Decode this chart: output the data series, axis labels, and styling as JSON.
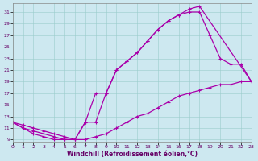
{
  "xlabel": "Windchill (Refroidissement éolien,°C)",
  "bg_color": "#cde8f0",
  "line_color": "#aa00aa",
  "marker": "+",
  "xlim": [
    0,
    23
  ],
  "ylim": [
    8.5,
    32.5
  ],
  "xticks": [
    0,
    1,
    2,
    3,
    4,
    5,
    6,
    7,
    8,
    9,
    10,
    11,
    12,
    13,
    14,
    15,
    16,
    17,
    18,
    19,
    20,
    21,
    22,
    23
  ],
  "yticks": [
    9,
    11,
    13,
    15,
    17,
    19,
    21,
    23,
    25,
    27,
    29,
    31
  ],
  "curve1_x": [
    0,
    1,
    2,
    3,
    4,
    5,
    6,
    7,
    8,
    9,
    10,
    11,
    12,
    13,
    14,
    15,
    16,
    17,
    18,
    23
  ],
  "curve1_y": [
    12,
    11,
    10.5,
    10,
    9.5,
    9,
    9,
    12,
    17,
    17,
    21,
    22.5,
    24,
    26,
    28,
    29.5,
    30.5,
    31.5,
    32,
    19
  ],
  "curve2_x": [
    0,
    1,
    2,
    3,
    4,
    5,
    6,
    7,
    8,
    9,
    10,
    11,
    12,
    13,
    14,
    15,
    16,
    17,
    18,
    19,
    20,
    21,
    22,
    23
  ],
  "curve2_y": [
    12,
    11.5,
    11,
    10.5,
    10,
    9.5,
    9,
    9,
    9.5,
    10,
    11,
    12,
    13,
    13.5,
    14.5,
    15.5,
    16.5,
    17,
    17.5,
    18,
    18.5,
    18.5,
    19,
    19
  ],
  "curve3_x": [
    0,
    1,
    2,
    3,
    4,
    5,
    6,
    7,
    8,
    9,
    10,
    11,
    12,
    13,
    14,
    15,
    16,
    17,
    18,
    19,
    20,
    21,
    22,
    23
  ],
  "curve3_y": [
    12,
    11,
    10,
    9.5,
    9,
    9,
    9,
    12,
    12,
    17,
    21,
    22.5,
    24,
    26,
    28,
    29.5,
    30.5,
    31,
    31,
    27,
    23,
    22,
    22,
    19
  ]
}
